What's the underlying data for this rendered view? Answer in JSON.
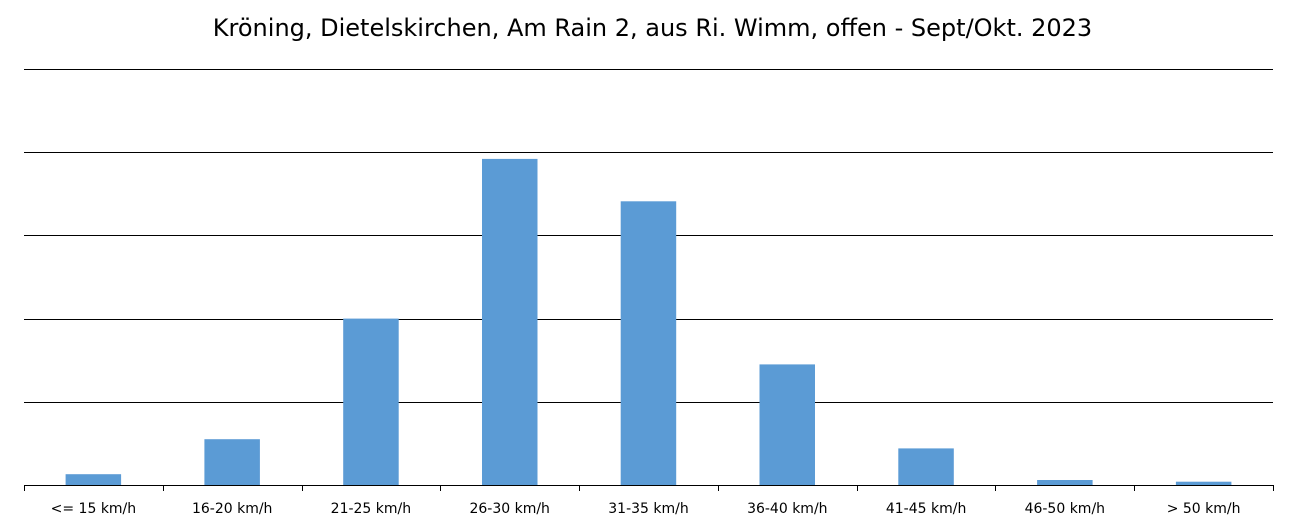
{
  "chart_data": {
    "type": "bar",
    "title": "Kröning, Dietelskirchen, Am Rain 2, aus Ri. Wimm, offen - Sept/Okt. 2023",
    "xlabel": "",
    "ylabel": "",
    "categories": [
      "<= 15 km/h",
      "16-20 km/h",
      "21-25 km/h",
      "26-30 km/h",
      "31-35 km/h",
      "36-40 km/h",
      "41-45 km/h",
      "46-50 km/h",
      "> 50 km/h"
    ],
    "values": [
      0.13,
      0.55,
      2.0,
      3.92,
      3.41,
      1.45,
      0.44,
      0.06,
      0.04
    ],
    "ylim": [
      0,
      5
    ],
    "y_tick_values": [
      0,
      1,
      2,
      3,
      4,
      5
    ],
    "y_tick_labels_visible": false,
    "grid": true,
    "legend": "none",
    "colors": {
      "bar": "#5b9bd5",
      "grid": "#000000",
      "axis": "#000000",
      "background": "#ffffff"
    }
  }
}
